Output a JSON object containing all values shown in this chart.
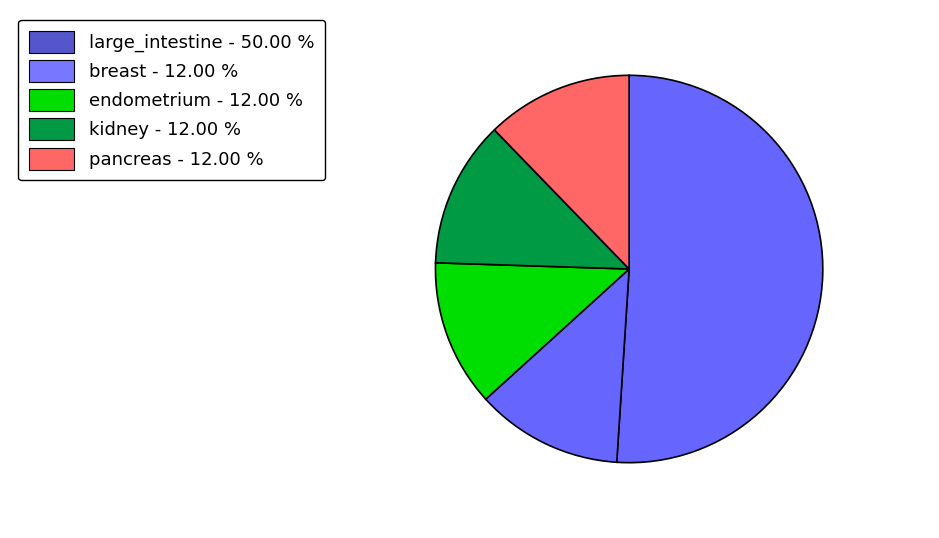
{
  "labels": [
    "large_intestine",
    "breast",
    "endometrium",
    "kidney",
    "pancreas"
  ],
  "sizes": [
    50,
    12,
    12,
    12,
    12
  ],
  "colors": [
    "#6666ff",
    "#6666ff",
    "#00dd00",
    "#009944",
    "#ff6666"
  ],
  "legend_colors": [
    "#5555cc",
    "#7777ff",
    "#00dd00",
    "#009944",
    "#ff6666"
  ],
  "legend_labels": [
    "large_intestine - 50.00 %",
    "breast - 12.00 %",
    "endometrium - 12.00 %",
    "kidney - 12.00 %",
    "pancreas - 12.00 %"
  ],
  "startangle": 90,
  "counterclock": false,
  "background_color": "#ffffff",
  "figsize": [
    9.39,
    5.38
  ],
  "dpi": 100,
  "legend_fontsize": 13
}
